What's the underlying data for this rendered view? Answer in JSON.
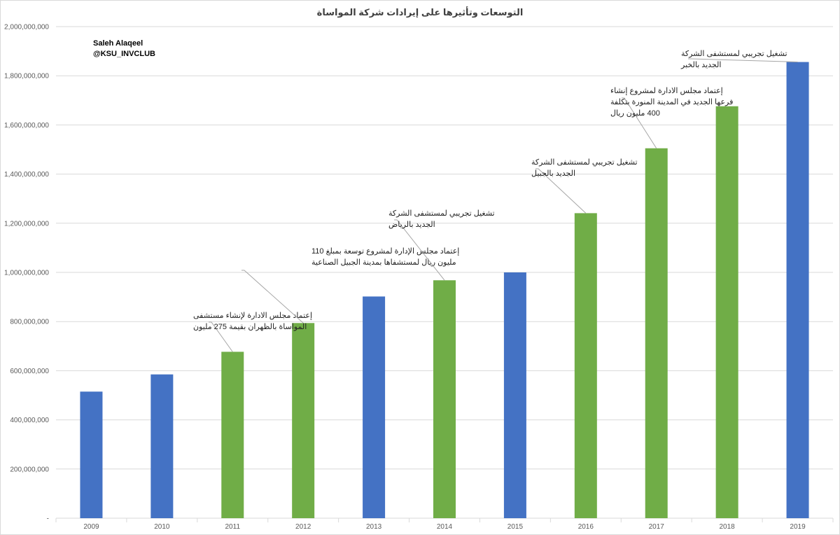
{
  "chart_data": {
    "type": "bar",
    "title": "التوسعات وتأثيرها على إيرادات شركة المواساة",
    "credit": [
      "Saleh Alaqeel",
      "@KSU_INVCLUB"
    ],
    "categories": [
      "2009",
      "2010",
      "2011",
      "2012",
      "2013",
      "2014",
      "2015",
      "2016",
      "2017",
      "2018",
      "2019"
    ],
    "values": [
      515000000,
      585000000,
      677000000,
      794000000,
      902000000,
      968000000,
      1000000000,
      1241000000,
      1505000000,
      1676000000,
      1856000000
    ],
    "bar_colors": [
      "#4472C4",
      "#4472C4",
      "#70AD47",
      "#70AD47",
      "#4472C4",
      "#70AD47",
      "#4472C4",
      "#70AD47",
      "#70AD47",
      "#70AD47",
      "#4472C4"
    ],
    "ylim": [
      0,
      2000000000
    ],
    "yticks": [
      "-",
      "200,000,000",
      "400,000,000",
      "600,000,000",
      "800,000,000",
      "1,000,000,000",
      "1,200,000,000",
      "1,400,000,000",
      "1,600,000,000",
      "1,800,000,000",
      "2,000,000,000"
    ],
    "grid": true,
    "legend": "none",
    "annotations": [
      {
        "category": "2011",
        "lines": [
          "إعتماد مجلس الادارة لإنشاء مستشفى",
          "المواساة بالظهران بقيمة 275 مليون"
        ]
      },
      {
        "category": "2012",
        "lines": [
          "إعتماد مجلس الإدارة لمشروع توسعة بمبلغ 110",
          "مليون ريال لمستشفاها بمدينة الجبيل الصناعية"
        ]
      },
      {
        "category": "2014",
        "lines": [
          "تشغيل تجريبي لمستشفى الشركة",
          "الجديد بالرياض"
        ]
      },
      {
        "category": "2016",
        "lines": [
          "تشغيل تجريبي لمستشفى الشركة",
          "الجديد بالجبيل"
        ]
      },
      {
        "category": "2017",
        "lines": [
          "إعتماد مجلس الادارة لمشروع إنشاء",
          "فرعها الجديد في المدينة المنورة بتكلفة",
          "400 مليون ريال"
        ]
      },
      {
        "category": "2019",
        "lines": [
          "تشغيل تجريبي لمستشفى الشركة",
          "الجديد بالخبر"
        ]
      }
    ]
  }
}
